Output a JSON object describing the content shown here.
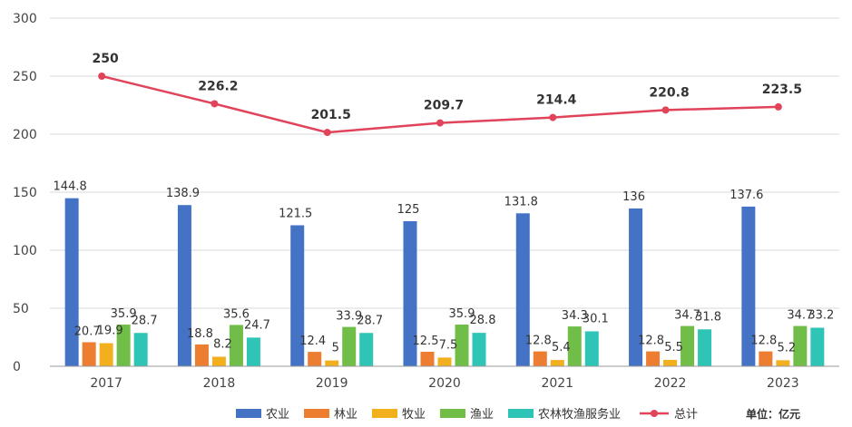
{
  "chart_data": {
    "type": "bar+line",
    "categories": [
      "2017",
      "2018",
      "2019",
      "2020",
      "2021",
      "2022",
      "2023"
    ],
    "ylim": [
      0,
      300
    ],
    "yticks": [
      0,
      50,
      100,
      150,
      200,
      250,
      300
    ],
    "grid": true,
    "series": [
      {
        "name": "农业",
        "type": "bar",
        "color": "#4472C4",
        "values": [
          144.8,
          138.9,
          121.5,
          125,
          131.8,
          136,
          137.6
        ]
      },
      {
        "name": "林业",
        "type": "bar",
        "color": "#ED7D31",
        "values": [
          20.7,
          18.8,
          12.4,
          12.5,
          12.8,
          12.8,
          12.8
        ]
      },
      {
        "name": "牧业",
        "type": "bar",
        "color": "#F2B01E",
        "values": [
          19.9,
          8.2,
          5,
          7.5,
          5.4,
          5.5,
          5.2
        ]
      },
      {
        "name": "渔业",
        "type": "bar",
        "color": "#70BD47",
        "values": [
          35.9,
          35.6,
          33.9,
          35.9,
          34.3,
          34.7,
          34.7
        ]
      },
      {
        "name": "农林牧渔服务业",
        "type": "bar",
        "color": "#2EC4B6",
        "values": [
          28.7,
          24.7,
          28.7,
          28.8,
          30.1,
          31.8,
          33.2
        ]
      },
      {
        "name": "总计",
        "type": "line",
        "color": "#E0435A",
        "values": [
          250,
          226.2,
          201.5,
          209.7,
          214.4,
          220.8,
          223.5
        ]
      }
    ],
    "legend_position": "bottom",
    "unit_label": "单位：亿元"
  }
}
